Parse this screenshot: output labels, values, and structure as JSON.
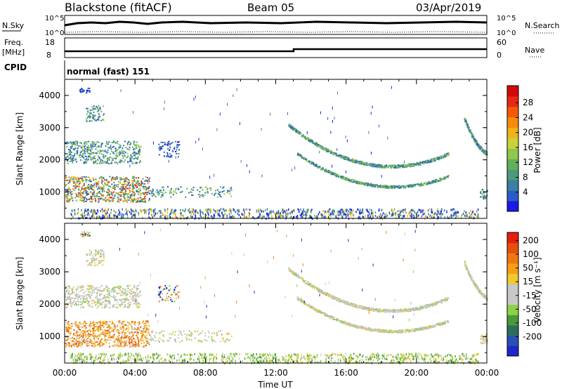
{
  "header": {
    "station": "Blackstone (fitACF)",
    "beam": "Beam 05",
    "date": "03/Apr/2019"
  },
  "side_labels": {
    "nsky": "N.Sky",
    "nsearch": "N.Search",
    "freq": "Freq.",
    "freq_unit": "[MHz]",
    "nave": "Nave",
    "cpid": "CPID"
  },
  "cpid_text": "normal (fast) 151",
  "aux_ticks": {
    "count_hi": "10^5",
    "count_lo": "10^0",
    "freq_hi": "18",
    "freq_lo": "8",
    "nave_hi": "60",
    "nave_lo": "0"
  },
  "chart_data": [
    {
      "type": "heatmap",
      "name": "power",
      "ylabel": "Slant Range [km]",
      "yticks": [
        "1000",
        "2000",
        "3000",
        "4000"
      ],
      "ylim": [
        180,
        4500
      ],
      "xlim": [
        0,
        24
      ],
      "colorbar": {
        "label": "Power [dB]",
        "ticks": [
          "4",
          "8",
          "12",
          "16",
          "20",
          "24",
          "28"
        ],
        "colors": [
          "#1a1ae6",
          "#2a5cc8",
          "#3d7fa0",
          "#4c9a7a",
          "#62b05a",
          "#8fc84a",
          "#c8d23c",
          "#f0b418",
          "#f58c0c",
          "#f25a0a",
          "#e62814",
          "#d20a0a"
        ]
      }
    },
    {
      "type": "heatmap",
      "name": "velocity",
      "ylabel": "Slant Range [km]",
      "yticks": [
        "1000",
        "2000",
        "3000",
        "4000"
      ],
      "ylim": [
        180,
        4500
      ],
      "xlim": [
        0,
        24
      ],
      "xticks": [
        "00:00",
        "04:00",
        "08:00",
        "12:00",
        "16:00",
        "20:00",
        "00:00"
      ],
      "xlabel": "Time UT",
      "colorbar": {
        "label": "Velocity [m s⁻¹]",
        "ticks": [
          "200",
          "100",
          "50",
          "15",
          "-15",
          "-50",
          "-100",
          "-200"
        ],
        "colors": [
          "#1e28c8",
          "#2850b4",
          "#2d6e5a",
          "#4a9a3a",
          "#8cd246",
          "#c8c8c8",
          "#c8c8c8",
          "#f0c832",
          "#f5a014",
          "#f07814",
          "#e6500a",
          "#e61e0a"
        ]
      }
    }
  ]
}
